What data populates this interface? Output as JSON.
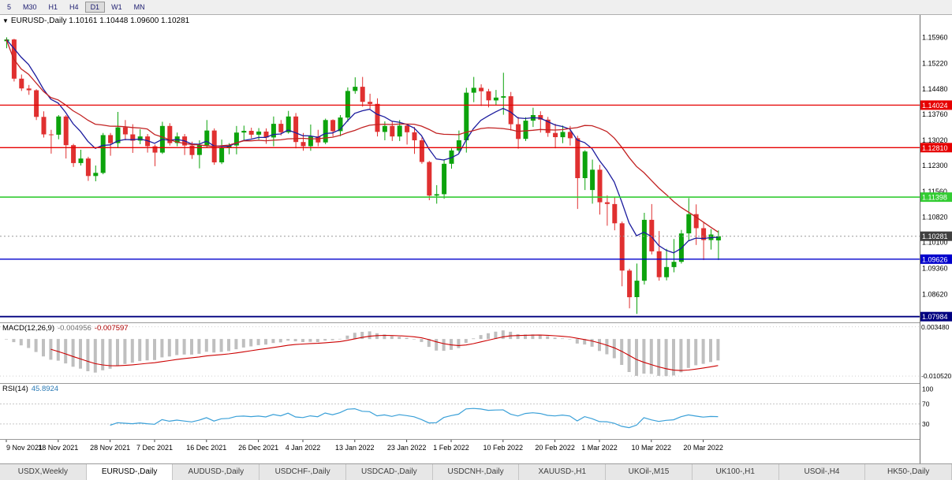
{
  "toolbar": {
    "timeframes": [
      "5",
      "M30",
      "H1",
      "H4",
      "D1",
      "W1",
      "MN"
    ],
    "active": "D1"
  },
  "tabs": {
    "items": [
      "USDX,Weekly",
      "EURUSD-,Daily",
      "AUDUSD-,Daily",
      "USDCHF-,Daily",
      "USDCAD-,Daily",
      "USDCNH-,Daily",
      "XAUUSD-,H1",
      "UKOil-,M15",
      "UK100-,H1",
      "USOil-,H4",
      "HK50-,Daily"
    ],
    "active_index": 1
  },
  "chart_data": {
    "type": "candlestick",
    "title_marker": "▼",
    "title_symbol": "EURUSD-,Daily",
    "title_ohlc": "1.10161 1.10448 1.09600 1.10281",
    "current_candle": {
      "open": 1.10161,
      "high": 1.10448,
      "low": 1.096,
      "close": 1.10281
    },
    "price_range": [
      1.0782,
      1.166
    ],
    "y_axis_labels": [
      "1.15960",
      "1.15220",
      "1.14480",
      "1.13760",
      "1.13020",
      "1.12300",
      "1.11560",
      "1.10820",
      "1.10100",
      "1.09360",
      "1.08620"
    ],
    "x_labels": [
      {
        "label": "9 Nov 2021",
        "i": 0
      },
      {
        "label": "18 Nov 2021",
        "i": 7
      },
      {
        "label": "28 Nov 2021",
        "i": 14
      },
      {
        "label": "7 Dec 2021",
        "i": 20
      },
      {
        "label": "16 Dec 2021",
        "i": 27
      },
      {
        "label": "26 Dec 2021",
        "i": 34
      },
      {
        "label": "4 Jan 2022",
        "i": 40
      },
      {
        "label": "13 Jan 2022",
        "i": 47
      },
      {
        "label": "23 Jan 2022",
        "i": 54
      },
      {
        "label": "1 Feb 2022",
        "i": 60
      },
      {
        "label": "10 Feb 2022",
        "i": 67
      },
      {
        "label": "20 Feb 2022",
        "i": 74
      },
      {
        "label": "1 Mar 2022",
        "i": 80
      },
      {
        "label": "10 Mar 2022",
        "i": 87
      },
      {
        "label": "20 Mar 2022",
        "i": 94
      }
    ],
    "hlines": [
      {
        "price": 1.14024,
        "label": "1.14024",
        "color_key": "line_red",
        "w": 1.3
      },
      {
        "price": 1.1281,
        "label": "1.12810",
        "color_key": "line_red",
        "w": 1.3
      },
      {
        "price": 1.11398,
        "label": "1.11398",
        "color_key": "line_green",
        "w": 1.6
      },
      {
        "price": 1.09626,
        "label": "1.09626",
        "color_key": "line_blue",
        "w": 1.3
      },
      {
        "price": 1.07984,
        "label": "1.07984",
        "color_key": "line_navy",
        "w": 1.8
      }
    ],
    "current_price": {
      "price": 1.10281,
      "label": "1.10281",
      "color_key": "bid_badge"
    },
    "indicators": {
      "macd": {
        "label": "MACD(12,26,9)",
        "value_main": "-0.004956",
        "value_signal": "-0.007597",
        "axis_values": [
          0.00348,
          -0.01052
        ],
        "axis_labels": [
          "0.003480",
          "-0.010520"
        ],
        "range": [
          -0.0125,
          0.0045
        ]
      },
      "rsi": {
        "label": "RSI(14)",
        "value": "45.8924",
        "axis_values": [
          100,
          70,
          30
        ],
        "axis_labels": [
          "100",
          "70",
          "30"
        ],
        "levels": [
          70,
          30
        ],
        "range": [
          0,
          110
        ]
      }
    },
    "colors": {
      "up": "#0ca30c",
      "down": "#e03030",
      "ma_fast": "#1c1c9e",
      "ma_slow": "#c22222",
      "macd_hist": "#bfbfbf",
      "macd_signal": "#cc0000",
      "rsi": "#3aa0d8",
      "line_red": "#e60000",
      "line_green": "#33cc33",
      "line_blue": "#0000cc",
      "line_navy": "#000080",
      "bid_badge": "#404040"
    },
    "candles": [
      [
        1.1585,
        1.1596,
        1.1565,
        1.159
      ],
      [
        1.159,
        1.1592,
        1.147,
        1.1478
      ],
      [
        1.1478,
        1.149,
        1.1443,
        1.145
      ],
      [
        1.145,
        1.146,
        1.1432,
        1.1445
      ],
      [
        1.1445,
        1.1448,
        1.136,
        1.1369
      ],
      [
        1.1369,
        1.1385,
        1.131,
        1.1319
      ],
      [
        1.1319,
        1.1332,
        1.1264,
        1.1318
      ],
      [
        1.1318,
        1.1374,
        1.1305,
        1.137
      ],
      [
        1.137,
        1.1374,
        1.125,
        1.1288
      ],
      [
        1.1288,
        1.1292,
        1.1226,
        1.1237
      ],
      [
        1.1237,
        1.1275,
        1.123,
        1.125
      ],
      [
        1.125,
        1.1255,
        1.1186,
        1.12
      ],
      [
        1.12,
        1.123,
        1.1185,
        1.1209
      ],
      [
        1.1209,
        1.1323,
        1.1205,
        1.1317
      ],
      [
        1.1317,
        1.1323,
        1.1258,
        1.1294
      ],
      [
        1.1294,
        1.1383,
        1.128,
        1.1339
      ],
      [
        1.1339,
        1.136,
        1.1302,
        1.1319
      ],
      [
        1.1319,
        1.1348,
        1.1266,
        1.1301
      ],
      [
        1.1301,
        1.1334,
        1.1291,
        1.1313
      ],
      [
        1.1313,
        1.132,
        1.1267,
        1.1285
      ],
      [
        1.1285,
        1.129,
        1.1228,
        1.1267
      ],
      [
        1.1267,
        1.1355,
        1.1263,
        1.1343
      ],
      [
        1.1343,
        1.1351,
        1.1287,
        1.1294
      ],
      [
        1.1294,
        1.1324,
        1.1285,
        1.1313
      ],
      [
        1.1313,
        1.132,
        1.126,
        1.1287
      ],
      [
        1.1287,
        1.1298,
        1.1249,
        1.126
      ],
      [
        1.126,
        1.1302,
        1.1222,
        1.1288
      ],
      [
        1.1288,
        1.136,
        1.128,
        1.133
      ],
      [
        1.133,
        1.1336,
        1.1232,
        1.1239
      ],
      [
        1.1239,
        1.1304,
        1.1234,
        1.128
      ],
      [
        1.128,
        1.1294,
        1.1262,
        1.1287
      ],
      [
        1.1287,
        1.1343,
        1.1262,
        1.1324
      ],
      [
        1.1324,
        1.1344,
        1.13,
        1.1329
      ],
      [
        1.1329,
        1.1338,
        1.1308,
        1.1318
      ],
      [
        1.1318,
        1.1337,
        1.1304,
        1.1327
      ],
      [
        1.1327,
        1.1336,
        1.1292,
        1.131
      ],
      [
        1.131,
        1.137,
        1.1285,
        1.1349
      ],
      [
        1.1349,
        1.136,
        1.1316,
        1.1325
      ],
      [
        1.1325,
        1.1386,
        1.1321,
        1.137
      ],
      [
        1.137,
        1.138,
        1.1279,
        1.1297
      ],
      [
        1.1297,
        1.1323,
        1.1272,
        1.1285
      ],
      [
        1.1285,
        1.1347,
        1.1272,
        1.1313
      ],
      [
        1.1313,
        1.1332,
        1.1285,
        1.1296
      ],
      [
        1.1296,
        1.1364,
        1.1291,
        1.136
      ],
      [
        1.136,
        1.1362,
        1.1313,
        1.1328
      ],
      [
        1.1328,
        1.1374,
        1.1314,
        1.1367
      ],
      [
        1.1367,
        1.1453,
        1.1355,
        1.1443
      ],
      [
        1.1443,
        1.1482,
        1.1435,
        1.1455
      ],
      [
        1.1455,
        1.1483,
        1.1398,
        1.1412
      ],
      [
        1.1412,
        1.1435,
        1.1392,
        1.1406
      ],
      [
        1.1406,
        1.1422,
        1.1313,
        1.1326
      ],
      [
        1.1326,
        1.1356,
        1.1302,
        1.1343
      ],
      [
        1.1343,
        1.1357,
        1.13,
        1.1313
      ],
      [
        1.1313,
        1.136,
        1.13,
        1.1344
      ],
      [
        1.1344,
        1.1348,
        1.129,
        1.1325
      ],
      [
        1.1325,
        1.134,
        1.1263,
        1.1302
      ],
      [
        1.1302,
        1.131,
        1.1235,
        1.124
      ],
      [
        1.124,
        1.1243,
        1.1131,
        1.1144
      ],
      [
        1.1144,
        1.1174,
        1.1121,
        1.1148
      ],
      [
        1.1148,
        1.1248,
        1.1135,
        1.1235
      ],
      [
        1.1235,
        1.1279,
        1.1221,
        1.1273
      ],
      [
        1.1273,
        1.133,
        1.1267,
        1.1302
      ],
      [
        1.1302,
        1.1452,
        1.1267,
        1.1438
      ],
      [
        1.1438,
        1.1483,
        1.1411,
        1.1452
      ],
      [
        1.1452,
        1.1462,
        1.14,
        1.1442
      ],
      [
        1.1442,
        1.1449,
        1.1396,
        1.1416
      ],
      [
        1.1416,
        1.1446,
        1.1402,
        1.1424
      ],
      [
        1.1424,
        1.1495,
        1.1375,
        1.1428
      ],
      [
        1.1428,
        1.144,
        1.133,
        1.1348
      ],
      [
        1.1348,
        1.1369,
        1.1278,
        1.1306
      ],
      [
        1.1306,
        1.1368,
        1.13,
        1.1358
      ],
      [
        1.1358,
        1.1395,
        1.134,
        1.1374
      ],
      [
        1.1374,
        1.1385,
        1.1324,
        1.1361
      ],
      [
        1.1361,
        1.1369,
        1.1312,
        1.1323
      ],
      [
        1.1323,
        1.1349,
        1.1279,
        1.1311
      ],
      [
        1.1311,
        1.1344,
        1.1294,
        1.1326
      ],
      [
        1.1326,
        1.1343,
        1.1287,
        1.1308
      ],
      [
        1.1308,
        1.1315,
        1.1106,
        1.1194
      ],
      [
        1.1194,
        1.1274,
        1.116,
        1.127
      ],
      [
        1.116,
        1.1247,
        1.1121,
        1.1218
      ],
      [
        1.1218,
        1.1232,
        1.109,
        1.1125
      ],
      [
        1.1125,
        1.1145,
        1.1058,
        1.112
      ],
      [
        1.112,
        1.1139,
        1.1045,
        1.1065
      ],
      [
        1.1065,
        1.107,
        1.0885,
        1.093
      ],
      [
        1.093,
        1.0935,
        1.0822,
        1.0854
      ],
      [
        1.0854,
        1.095,
        1.0806,
        1.0901
      ],
      [
        1.0901,
        1.1095,
        1.089,
        1.1075
      ],
      [
        1.1075,
        1.112,
        1.0976,
        1.0985
      ],
      [
        1.0985,
        1.1043,
        1.0901,
        1.0911
      ],
      [
        1.0911,
        1.0992,
        1.0902,
        1.094
      ],
      [
        1.094,
        1.102,
        1.0925,
        1.0955
      ],
      [
        1.0955,
        1.1046,
        1.095,
        1.1036
      ],
      [
        1.1036,
        1.1137,
        1.1015,
        1.1091
      ],
      [
        1.1091,
        1.1119,
        1.1003,
        1.1051
      ],
      [
        1.1051,
        1.1069,
        1.096,
        1.1017
      ],
      [
        1.1017,
        1.1048,
        1.099,
        1.1033
      ],
      [
        1.10161,
        1.10448,
        1.096,
        1.10281
      ]
    ]
  }
}
